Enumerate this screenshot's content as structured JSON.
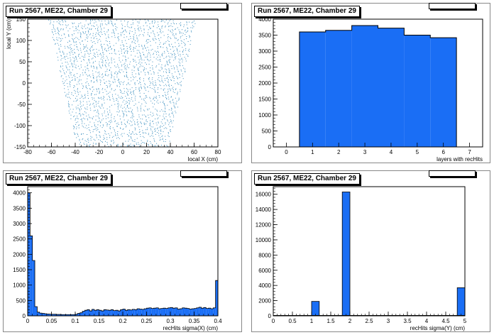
{
  "chart_data": [
    {
      "type": "scatter",
      "title": "Run 2567, ME22, Chamber 29",
      "xlabel": "local X (cm)",
      "ylabel": "local Y (cm)",
      "xlim": [
        -80,
        80
      ],
      "ylim": [
        -150,
        150
      ],
      "xticks": [
        -80,
        -60,
        -40,
        -20,
        0,
        20,
        40,
        60,
        80
      ],
      "yticks": [
        -150,
        -100,
        -50,
        0,
        50,
        100,
        150
      ],
      "region": {
        "y": [
          -150,
          150
        ],
        "x_half_width_at_bottom": 38,
        "x_half_width_at_top": 62
      },
      "color": "#3b8fbf"
    },
    {
      "type": "bar",
      "title": "Run 2567, ME22, Chamber 29",
      "xlabel": "layers with recHits",
      "ylabel": "",
      "xlim": [
        -0.5,
        7.5
      ],
      "ylim": [
        0,
        4000
      ],
      "xticks": [
        0,
        1,
        2,
        3,
        4,
        5,
        6,
        7
      ],
      "yticks": [
        0,
        500,
        1000,
        1500,
        2000,
        2500,
        3000,
        3500,
        4000
      ],
      "bin_width": 1,
      "categories": [
        0,
        1,
        2,
        3,
        4,
        5,
        6,
        7
      ],
      "values": [
        0,
        3600,
        3650,
        3800,
        3720,
        3500,
        3420,
        0
      ],
      "color": "#1a6ef5"
    },
    {
      "type": "bar",
      "title": "Run 2567, ME22, Chamber 29",
      "xlabel": "recHits sigma(X) (cm)",
      "ylabel": "",
      "xlim": [
        0,
        0.4
      ],
      "ylim": [
        0,
        4200
      ],
      "xticks": [
        0,
        0.05,
        0.1,
        0.15,
        0.2,
        0.25,
        0.3,
        0.35,
        0.4
      ],
      "xtick_labels": [
        "0",
        "0.05",
        "0.1",
        "0.15",
        "0.2",
        "0.25",
        "0.3",
        "0.35",
        "0.4"
      ],
      "yticks": [
        0,
        500,
        1000,
        1500,
        2000,
        2500,
        3000,
        3500,
        4000
      ],
      "bin_width": 0.005,
      "values": [
        4000,
        2600,
        1800,
        300,
        120,
        90,
        80,
        70,
        60,
        55,
        50,
        50,
        45,
        45,
        40,
        40,
        40,
        40,
        40,
        40,
        50,
        80,
        100,
        150,
        180,
        200,
        160,
        210,
        180,
        200,
        180,
        160,
        200,
        190,
        180,
        200,
        170,
        180,
        160,
        200,
        220,
        180,
        200,
        190,
        210,
        200,
        230,
        220,
        210,
        230,
        250,
        260,
        240,
        250,
        260,
        230,
        240,
        250,
        240,
        260,
        270,
        250,
        260,
        220,
        230,
        260,
        250,
        240,
        220,
        230,
        240,
        260,
        280,
        250,
        270,
        240,
        250,
        230,
        260,
        1150
      ],
      "color": "#1a6ef5"
    },
    {
      "type": "bar",
      "title": "Run 2567, ME22, Chamber 29",
      "xlabel": "recHits sigma(Y) (cm)",
      "ylabel": "",
      "xlim": [
        0,
        5
      ],
      "ylim": [
        0,
        17000
      ],
      "xticks": [
        0,
        0.5,
        1,
        1.5,
        2,
        2.5,
        3,
        3.5,
        4,
        4.5,
        5
      ],
      "xtick_labels": [
        "0",
        "0.5",
        "1",
        "1.5",
        "2",
        "2.5",
        "3",
        "3.5",
        "4",
        "4.5",
        "5"
      ],
      "yticks": [
        0,
        2000,
        4000,
        6000,
        8000,
        10000,
        12000,
        14000,
        16000
      ],
      "bins": [
        {
          "x0": 1.0,
          "x1": 1.2,
          "value": 1900
        },
        {
          "x0": 1.8,
          "x1": 2.0,
          "value": 16300
        },
        {
          "x0": 4.8,
          "x1": 5.0,
          "value": 3700
        }
      ],
      "color": "#1a6ef5"
    }
  ]
}
